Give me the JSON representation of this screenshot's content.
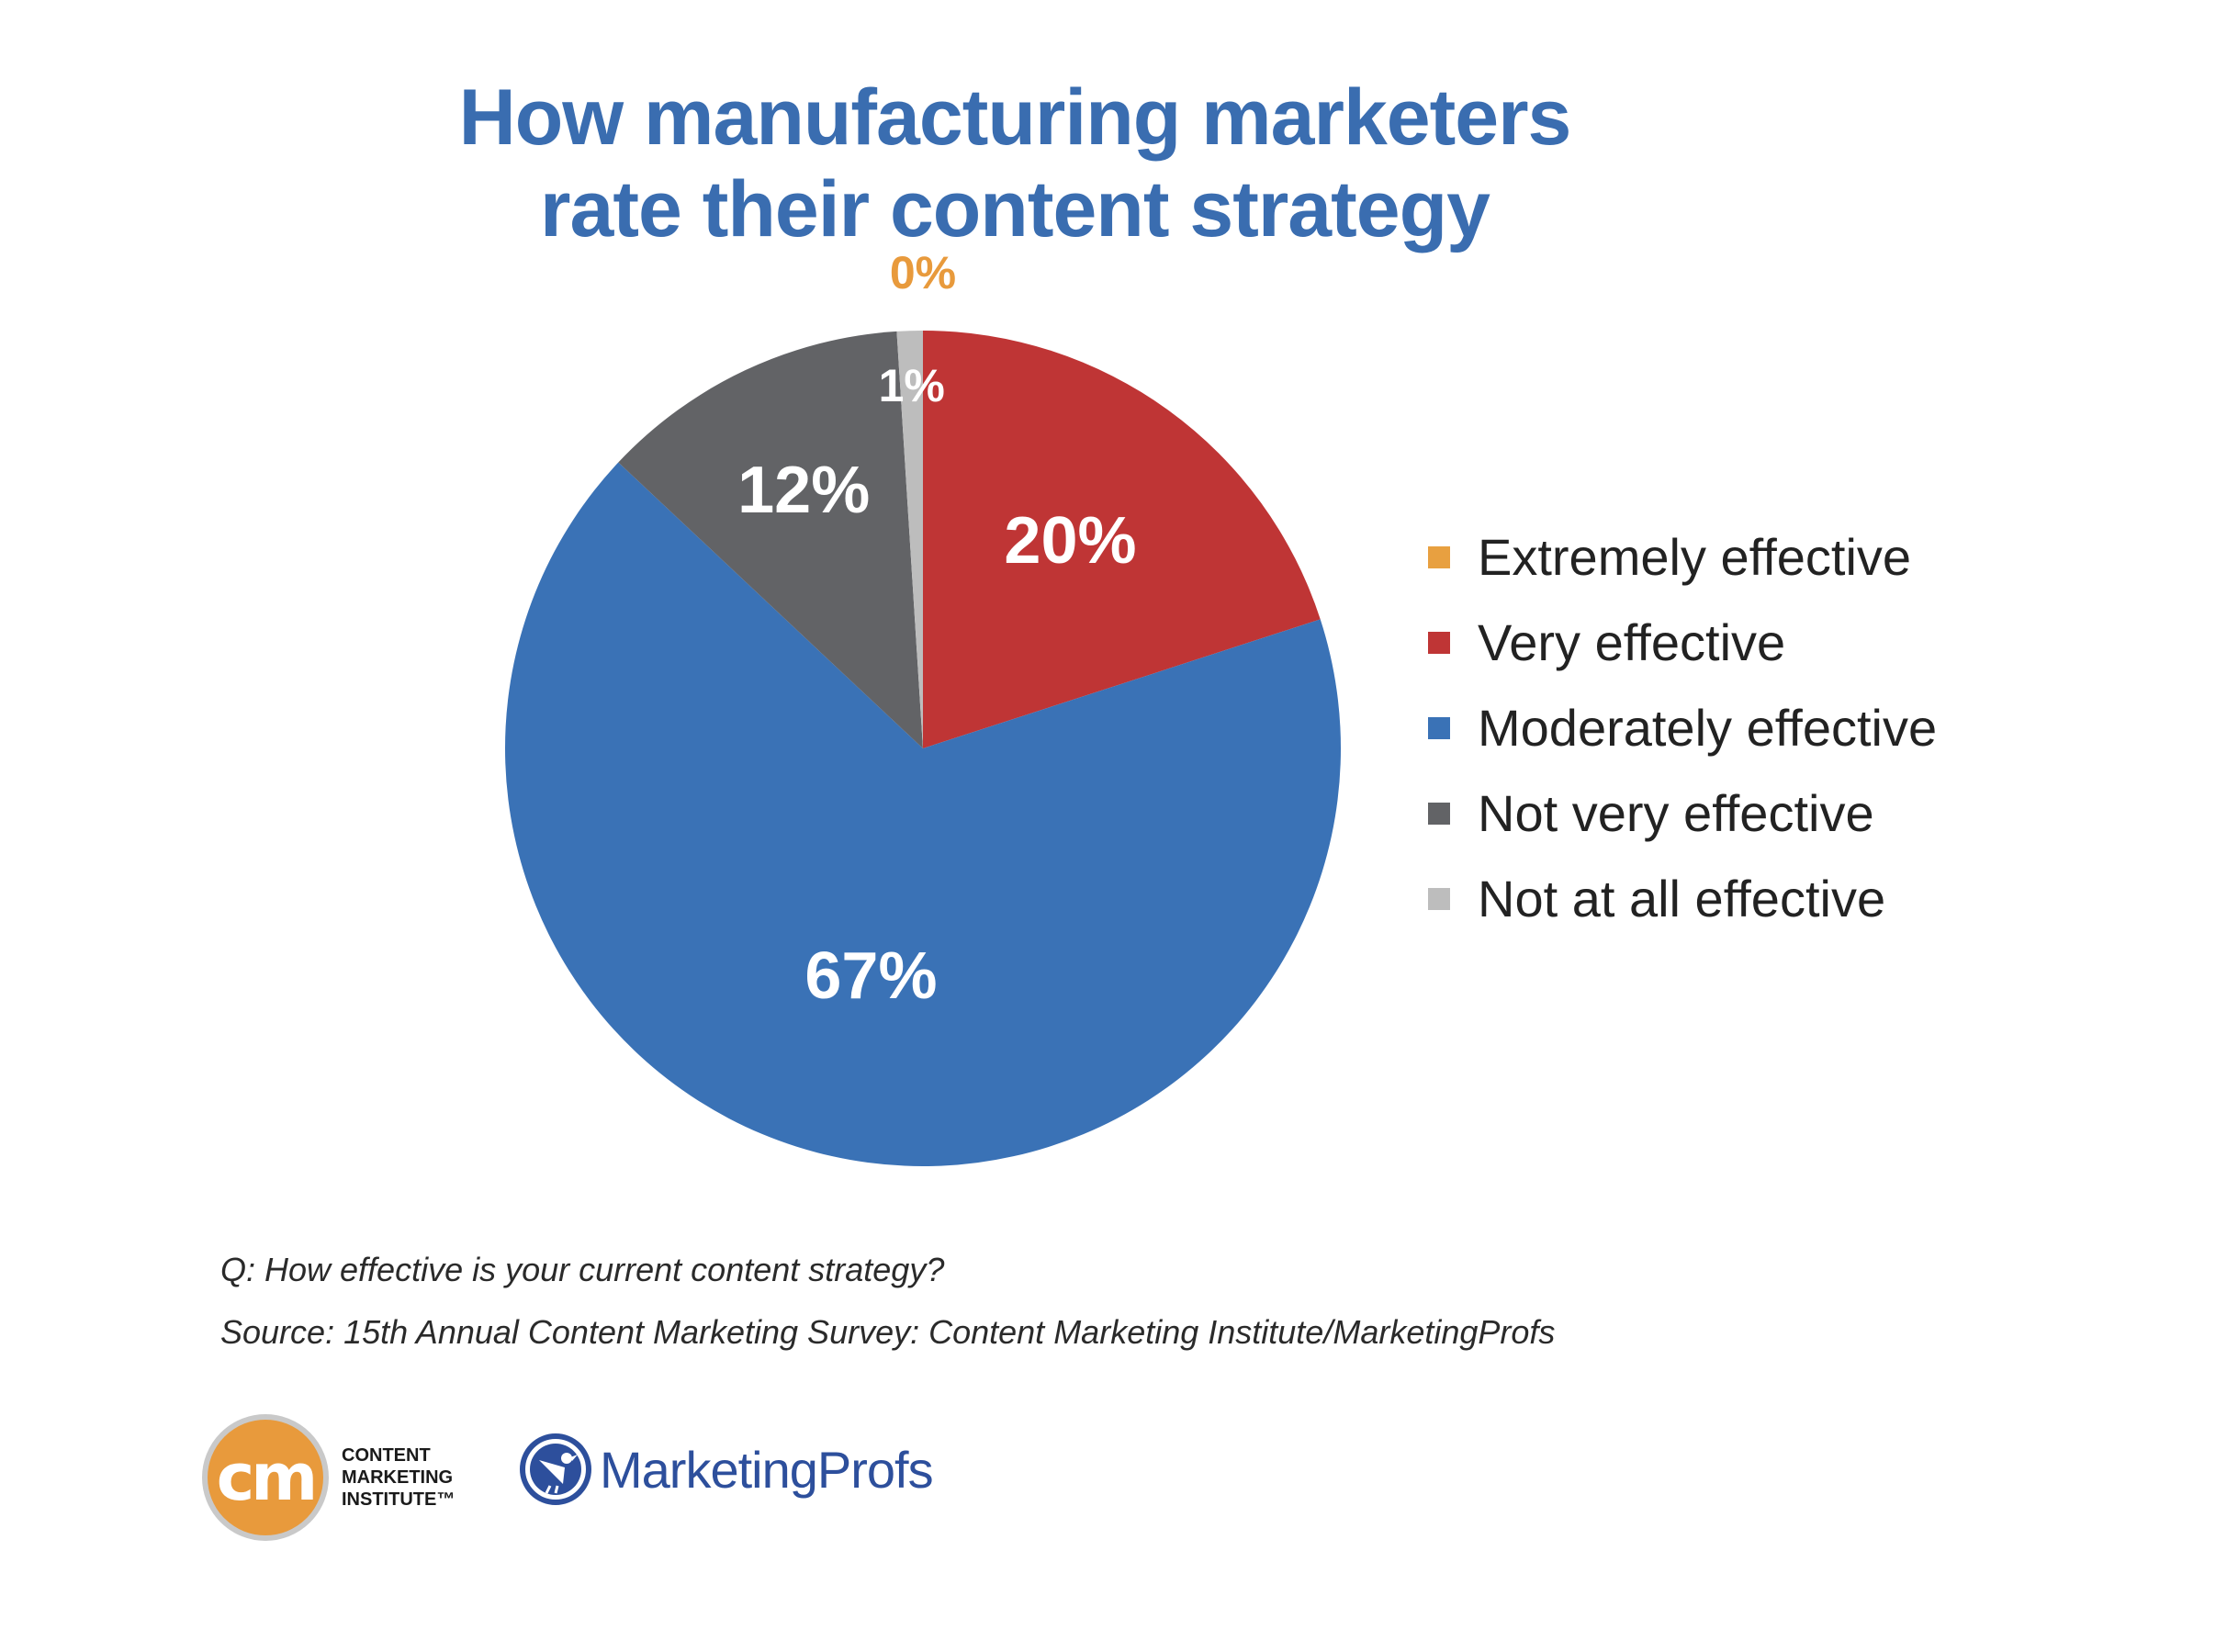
{
  "title": {
    "line1": "How manufacturing marketers",
    "line2": "rate their content strategy"
  },
  "chart_data": {
    "type": "pie",
    "slices": [
      {
        "name": "Extremely effective",
        "value": 0,
        "label": "0%",
        "color": "#e8a040",
        "label_color": "#e89a3c"
      },
      {
        "name": "Very effective",
        "value": 20,
        "label": "20%",
        "color": "#bf3535",
        "label_color": "#ffffff"
      },
      {
        "name": "Moderately effective",
        "value": 67,
        "label": "67%",
        "color": "#3a72b6",
        "label_color": "#ffffff"
      },
      {
        "name": "Not very effective",
        "value": 12,
        "label": "12%",
        "color": "#626366",
        "label_color": "#ffffff"
      },
      {
        "name": "Not at all effective",
        "value": 1,
        "label": "1%",
        "color": "#bdbdbd",
        "label_color": "#ffffff"
      }
    ],
    "legend_position": "right"
  },
  "legend": {
    "items": [
      {
        "label": "Extremely effective",
        "color": "#e8a040"
      },
      {
        "label": "Very effective",
        "color": "#bf3535"
      },
      {
        "label": "Moderately effective",
        "color": "#3a72b6"
      },
      {
        "label": "Not very effective",
        "color": "#626366"
      },
      {
        "label": "Not at all effective",
        "color": "#bdbdbd"
      }
    ]
  },
  "notes": {
    "question": "Q: How effective is your current content strategy?",
    "source": "Source: 15th Annual Content Marketing Survey: Content Marketing Institute/MarketingProfs"
  },
  "logos": {
    "cmi": {
      "badge": "cm",
      "line1": "CONTENT",
      "line2": "MARKETING",
      "line3": "INSTITUTE™",
      "color": "#e89a3c"
    },
    "marketingprofs": {
      "name": "MarketingProfs",
      "icon": "bird-icon",
      "color": "#2d4f9c"
    }
  }
}
